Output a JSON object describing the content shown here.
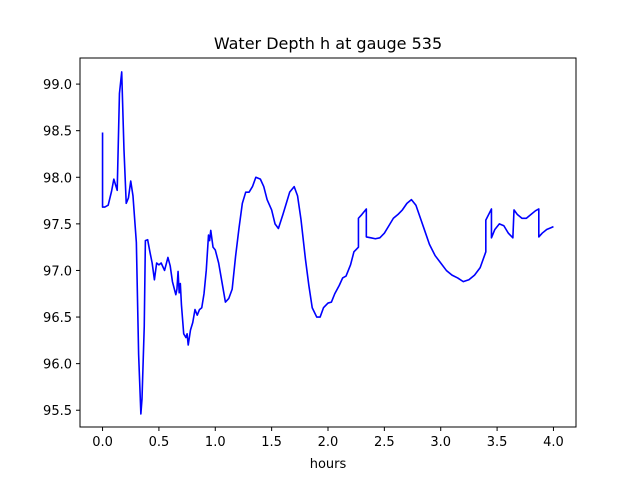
{
  "chart_data": {
    "type": "line",
    "title": "Water Depth h at gauge 535",
    "xlabel": "hours",
    "ylabel": "",
    "xlim": [
      -0.2,
      4.2
    ],
    "ylim": [
      95.32,
      99.28
    ],
    "xticks": [
      0.0,
      0.5,
      1.0,
      1.5,
      2.0,
      2.5,
      3.0,
      3.5,
      4.0
    ],
    "xtick_labels": [
      "0.0",
      "0.5",
      "1.0",
      "1.5",
      "2.0",
      "2.5",
      "3.0",
      "3.5",
      "4.0"
    ],
    "yticks": [
      95.5,
      96.0,
      96.5,
      97.0,
      97.5,
      98.0,
      98.5,
      99.0
    ],
    "ytick_labels": [
      "95.5",
      "96.0",
      "96.5",
      "97.0",
      "97.5",
      "98.0",
      "98.5",
      "99.0"
    ],
    "grid": false,
    "series": [
      {
        "color": "#0000ff",
        "x": [
          0.0,
          0.0,
          0.02,
          0.05,
          0.08,
          0.1,
          0.13,
          0.15,
          0.17,
          0.19,
          0.21,
          0.23,
          0.25,
          0.27,
          0.3,
          0.32,
          0.34,
          0.35,
          0.37,
          0.38,
          0.4,
          0.42,
          0.44,
          0.46,
          0.48,
          0.5,
          0.52,
          0.55,
          0.58,
          0.6,
          0.62,
          0.65,
          0.66,
          0.67,
          0.68,
          0.69,
          0.7,
          0.72,
          0.74,
          0.75,
          0.76,
          0.78,
          0.8,
          0.82,
          0.84,
          0.86,
          0.88,
          0.9,
          0.92,
          0.94,
          0.95,
          0.96,
          0.98,
          1.0,
          1.03,
          1.06,
          1.09,
          1.12,
          1.15,
          1.18,
          1.21,
          1.24,
          1.27,
          1.3,
          1.33,
          1.36,
          1.4,
          1.43,
          1.46,
          1.5,
          1.53,
          1.56,
          1.6,
          1.63,
          1.66,
          1.7,
          1.73,
          1.76,
          1.8,
          1.83,
          1.86,
          1.9,
          1.93,
          1.96,
          2.0,
          2.03,
          2.06,
          2.1,
          2.13,
          2.16,
          2.2,
          2.23,
          2.27,
          2.27,
          2.3,
          2.34,
          2.34,
          2.38,
          2.42,
          2.46,
          2.5,
          2.54,
          2.58,
          2.62,
          2.66,
          2.7,
          2.74,
          2.78,
          2.82,
          2.86,
          2.9,
          2.95,
          3.0,
          3.05,
          3.1,
          3.15,
          3.2,
          3.25,
          3.3,
          3.35,
          3.4,
          3.4,
          3.45,
          3.45,
          3.48,
          3.52,
          3.56,
          3.6,
          3.64,
          3.65,
          3.68,
          3.72,
          3.76,
          3.8,
          3.84,
          3.87,
          3.87,
          3.9,
          3.94,
          3.98,
          4.0
        ],
        "y": [
          98.48,
          97.68,
          97.68,
          97.7,
          97.85,
          97.98,
          97.86,
          98.9,
          99.13,
          98.3,
          97.72,
          97.78,
          97.96,
          97.8,
          97.3,
          96.1,
          95.46,
          95.62,
          96.4,
          97.32,
          97.33,
          97.2,
          97.08,
          96.9,
          97.08,
          97.06,
          97.08,
          97.0,
          97.14,
          97.05,
          96.88,
          96.74,
          96.8,
          96.99,
          96.76,
          96.86,
          96.63,
          96.32,
          96.28,
          96.32,
          96.2,
          96.36,
          96.44,
          96.58,
          96.52,
          96.58,
          96.6,
          96.75,
          97.0,
          97.38,
          97.32,
          97.43,
          97.25,
          97.22,
          97.08,
          96.87,
          96.66,
          96.7,
          96.8,
          97.15,
          97.45,
          97.72,
          97.84,
          97.84,
          97.9,
          98.0,
          97.98,
          97.9,
          97.76,
          97.65,
          97.5,
          97.45,
          97.6,
          97.72,
          97.84,
          97.9,
          97.8,
          97.55,
          97.12,
          96.84,
          96.6,
          96.5,
          96.5,
          96.6,
          96.65,
          96.66,
          96.75,
          96.84,
          96.92,
          96.94,
          97.06,
          97.2,
          97.25,
          97.56,
          97.6,
          97.66,
          97.36,
          97.35,
          97.34,
          97.35,
          97.4,
          97.48,
          97.56,
          97.6,
          97.65,
          97.72,
          97.76,
          97.7,
          97.56,
          97.42,
          97.28,
          97.16,
          97.08,
          97.0,
          96.95,
          96.92,
          96.88,
          96.9,
          96.95,
          97.03,
          97.2,
          97.54,
          97.66,
          97.35,
          97.44,
          97.5,
          97.48,
          97.4,
          97.35,
          97.65,
          97.6,
          97.56,
          97.56,
          97.6,
          97.64,
          97.66,
          97.36,
          97.4,
          97.44,
          97.46,
          97.47
        ]
      }
    ]
  }
}
